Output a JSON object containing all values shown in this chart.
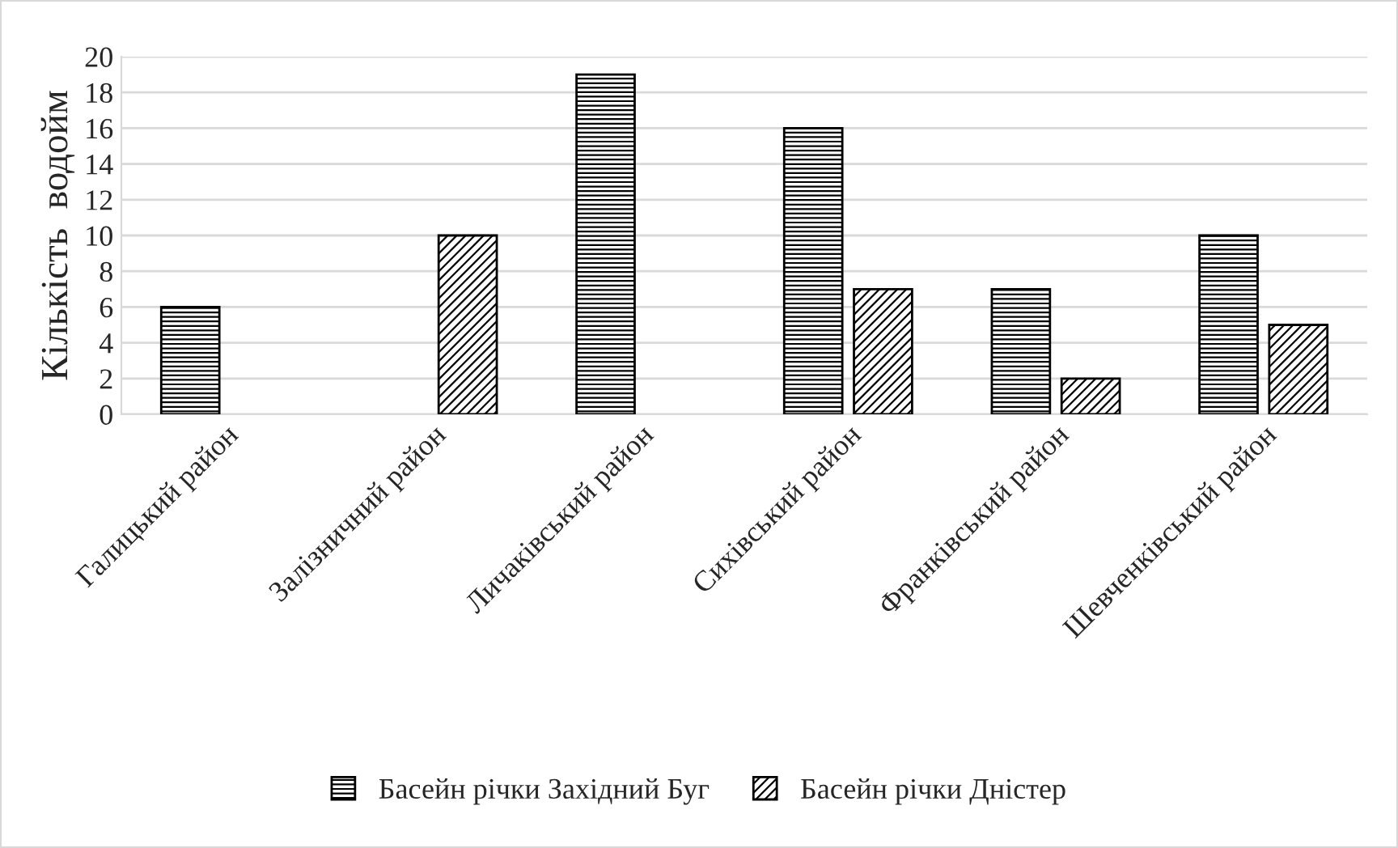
{
  "chart_data": {
    "type": "bar",
    "ylabel": "Кількість  водойм",
    "categories": [
      "Галицький район",
      "Залізничний район",
      "Личаківський район",
      "Сихівський район",
      "Франківський район",
      "Шевченківський район"
    ],
    "series": [
      {
        "name": "Басейн річки Західний Буг",
        "color": "#000000",
        "values": [
          6,
          null,
          19,
          16,
          7,
          10
        ]
      },
      {
        "name": "Басейн річки Дністер",
        "color": "#000000",
        "values": [
          null,
          10,
          null,
          7,
          2,
          5
        ]
      }
    ],
    "ylim": [
      0,
      20
    ],
    "yticks": [
      0,
      2,
      4,
      6,
      8,
      10,
      12,
      14,
      16,
      18,
      20
    ],
    "grid": "y",
    "legend": "bottom"
  }
}
